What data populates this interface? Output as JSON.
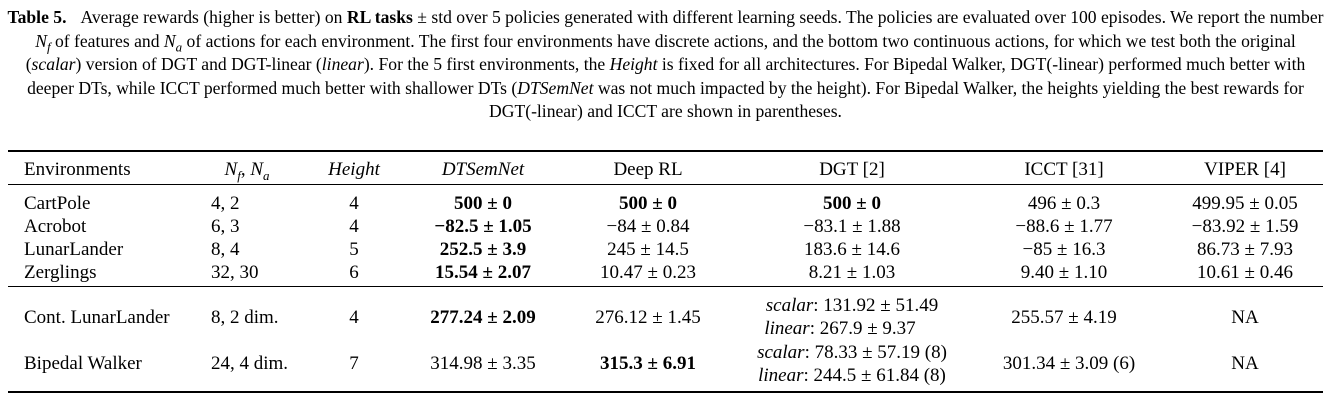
{
  "caption": {
    "label": "Table 5.",
    "p1": "Average rewards (higher is better) on ",
    "p1b": "RL tasks",
    "p2": " ± std over 5 policies generated with different learning seeds. The policies are evaluated over 100 episodes. We report the number ",
    "nf": "N",
    "nf_sub": "f",
    "p3": " of features and ",
    "na": "N",
    "na_sub": "a",
    "p4": " of actions for each environment. The first four environments have discrete actions, and the bottom two continuous actions, for which we test both the original (",
    "p4i": "scalar",
    "p5": ") version of DGT and DGT-linear (",
    "p5i": "linear",
    "p6": "). For the 5 first environments, the ",
    "p6i": "Height",
    "p7": " is fixed for all architectures. For Bipedal Walker, DGT(-linear) performed much better with deeper DTs, while ICCT performed much better with shallower DTs (",
    "p7i": "DTSemNet",
    "p8": " was not much impacted by the height). For Bipedal Walker, the heights yielding the best rewards for DGT(-linear) and ICCT are shown in parentheses."
  },
  "headers": {
    "env": "Environments",
    "nf": "N",
    "nf_sub": "f",
    "sep": ", ",
    "na": "N",
    "na_sub": "a",
    "height": "Height",
    "dtsemnet": "DTSemNet",
    "deeprl": "Deep RL",
    "dgt": "DGT [2]",
    "icct": "ICCT [31]",
    "viper": "VIPER [4]"
  },
  "discrete_rows": [
    {
      "env": "CartPole",
      "nfna": "4, 2",
      "height": "4",
      "dtsemnet": "500 ± 0",
      "deeprl": "500 ± 0",
      "dgt": "500 ± 0",
      "icct": "496 ± 0.3",
      "viper": "499.95 ± 0.05"
    },
    {
      "env": "Acrobot",
      "nfna": "6, 3",
      "height": "4",
      "dtsemnet": "−82.5 ± 1.05",
      "deeprl": "−84 ± 0.84",
      "dgt": "−83.1 ± 1.88",
      "icct": "−88.6 ± 1.77",
      "viper": "−83.92 ± 1.59"
    },
    {
      "env": "LunarLander",
      "nfna": "8, 4",
      "height": "5",
      "dtsemnet": "252.5 ± 3.9",
      "deeprl": "245 ± 14.5",
      "dgt": "183.6 ± 14.6",
      "icct": "−85 ± 16.3",
      "viper": "86.73 ± 7.93"
    },
    {
      "env": "Zerglings",
      "nfna": "32, 30",
      "height": "6",
      "dtsemnet": "15.54 ± 2.07",
      "deeprl": "10.47 ± 0.23",
      "dgt": "8.21 ± 1.03",
      "icct": "9.40 ± 1.10",
      "viper": "10.61 ± 0.46"
    }
  ],
  "cont_rows": [
    {
      "env": "Cont. LunarLander",
      "nfna": "8, 2 dim.",
      "height": "4",
      "dtsemnet": "277.24 ± 2.09",
      "deeprl": "276.12 ± 1.45",
      "dgt_scalar_label": "scalar",
      "dgt_scalar_val": ": 131.92 ± 51.49",
      "dgt_linear_label": "linear",
      "dgt_linear_val": ": 267.9 ± 9.37",
      "icct": "255.57 ± 4.19",
      "viper": "NA"
    },
    {
      "env": "Bipedal Walker",
      "nfna": "24, 4 dim.",
      "height": "7",
      "dtsemnet": "314.98 ± 3.35",
      "deeprl": "315.3 ± 6.91",
      "dgt_scalar_label": "scalar",
      "dgt_scalar_val": ": 78.33 ± 57.19 (8)",
      "dgt_linear_label": "linear",
      "dgt_linear_val": ": 244.5 ± 61.84 (8)",
      "icct": "301.34 ± 3.09 (6)",
      "viper": "NA"
    }
  ]
}
